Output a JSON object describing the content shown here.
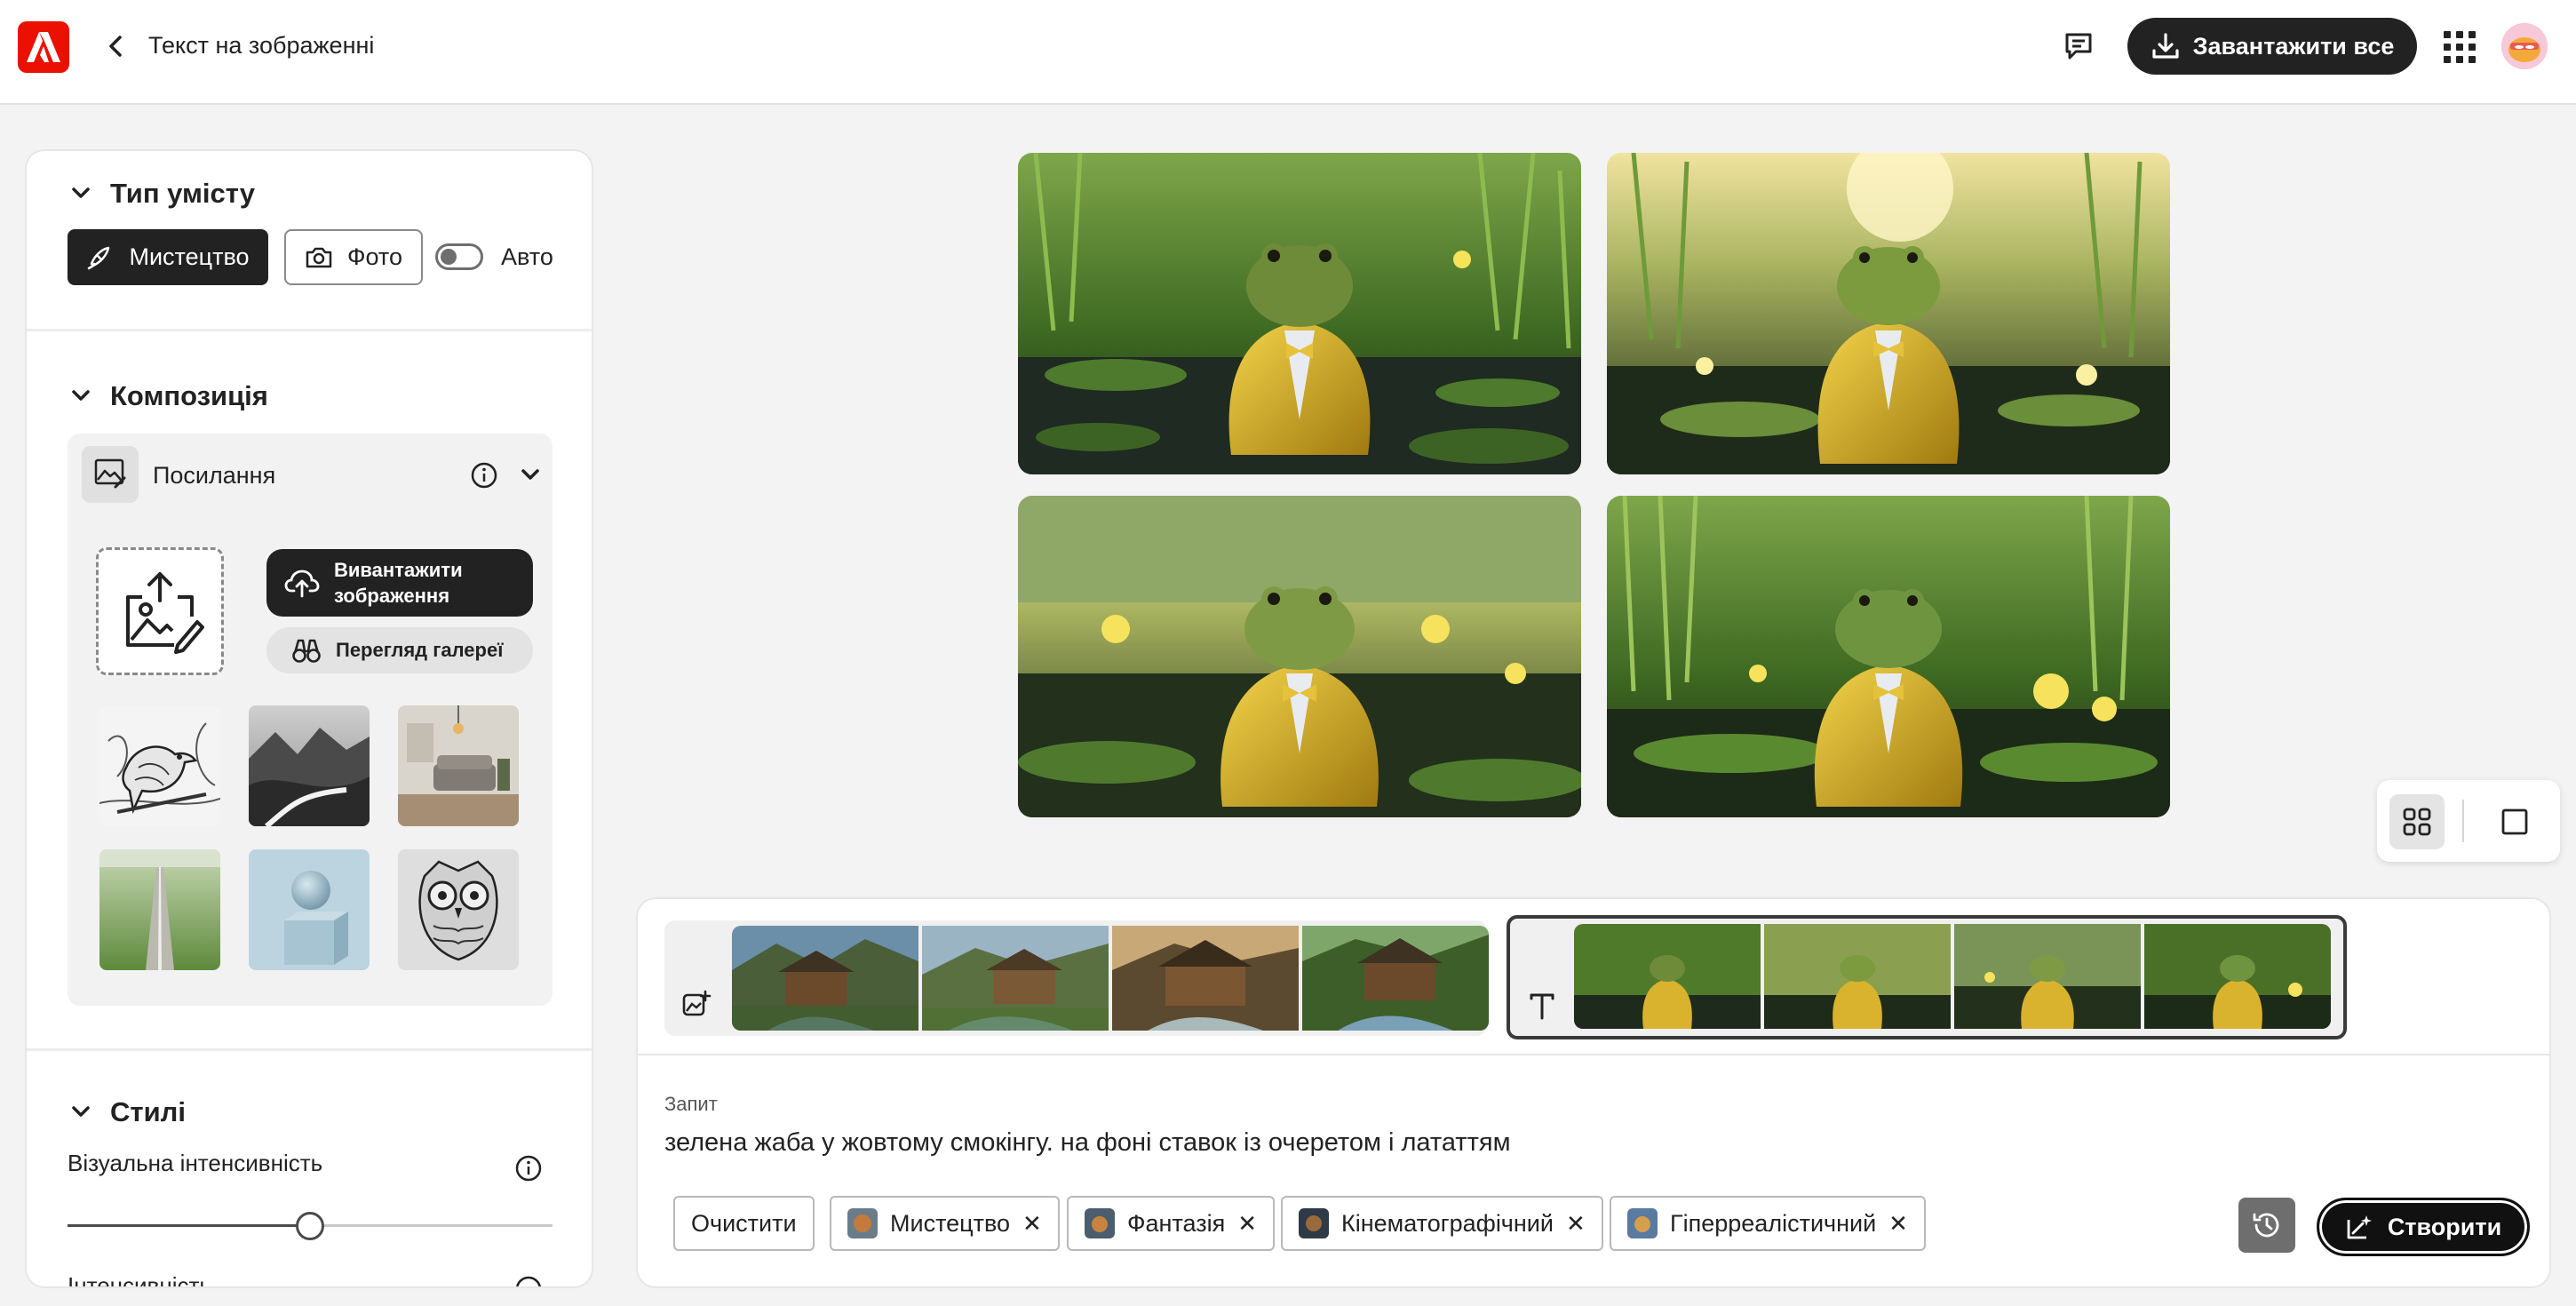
{
  "header": {
    "title": "Текст на зображенні",
    "download_all": "Завантажити все"
  },
  "panel": {
    "content_type": {
      "heading": "Тип умісту",
      "art_label": "Мистецтво",
      "photo_label": "Фото",
      "auto_label": "Авто",
      "auto_enabled": false
    },
    "composition": {
      "heading": "Композиція",
      "reference_label": "Посилання",
      "upload_label_line1": "Вивантажити",
      "upload_label_line2": "зображення",
      "gallery_label": "Перегляд галереї",
      "presets": [
        "bird-sketch",
        "mountain-landscape",
        "living-room",
        "field-road",
        "sphere-on-cube",
        "owl-pattern"
      ]
    },
    "styles": {
      "heading": "Стилі",
      "visual_intensity_label": "Візуальна інтенсивність",
      "visual_intensity_value": 0.5,
      "next_label_partial": "Інтенсивність"
    }
  },
  "gallery": {
    "images": [
      "frog-in-tuxedo-1",
      "frog-in-tuxedo-2",
      "frog-in-tuxedo-3",
      "frog-in-tuxedo-4"
    ]
  },
  "history": {
    "groups": [
      {
        "type": "image-reference",
        "thumbs": [
          "cottage-1",
          "cottage-2",
          "cottage-3",
          "cottage-4"
        ]
      },
      {
        "type": "text-to-image",
        "thumbs": [
          "frog-1",
          "frog-2",
          "frog-3",
          "frog-4"
        ],
        "selected": true
      }
    ]
  },
  "prompt": {
    "label": "Запит",
    "text": "зелена жаба у жовтому смокінгу. на фоні ставок із очеретом і лататтям",
    "clear_label": "Очистити",
    "chips": [
      {
        "label": "Мистецтво"
      },
      {
        "label": "Фантазія"
      },
      {
        "label": "Кінематографічний"
      },
      {
        "label": "Гіперреалістичний"
      }
    ],
    "create_label": "Створити"
  },
  "colors": {
    "brand": "#eb1000",
    "primary_dark": "#222222"
  }
}
